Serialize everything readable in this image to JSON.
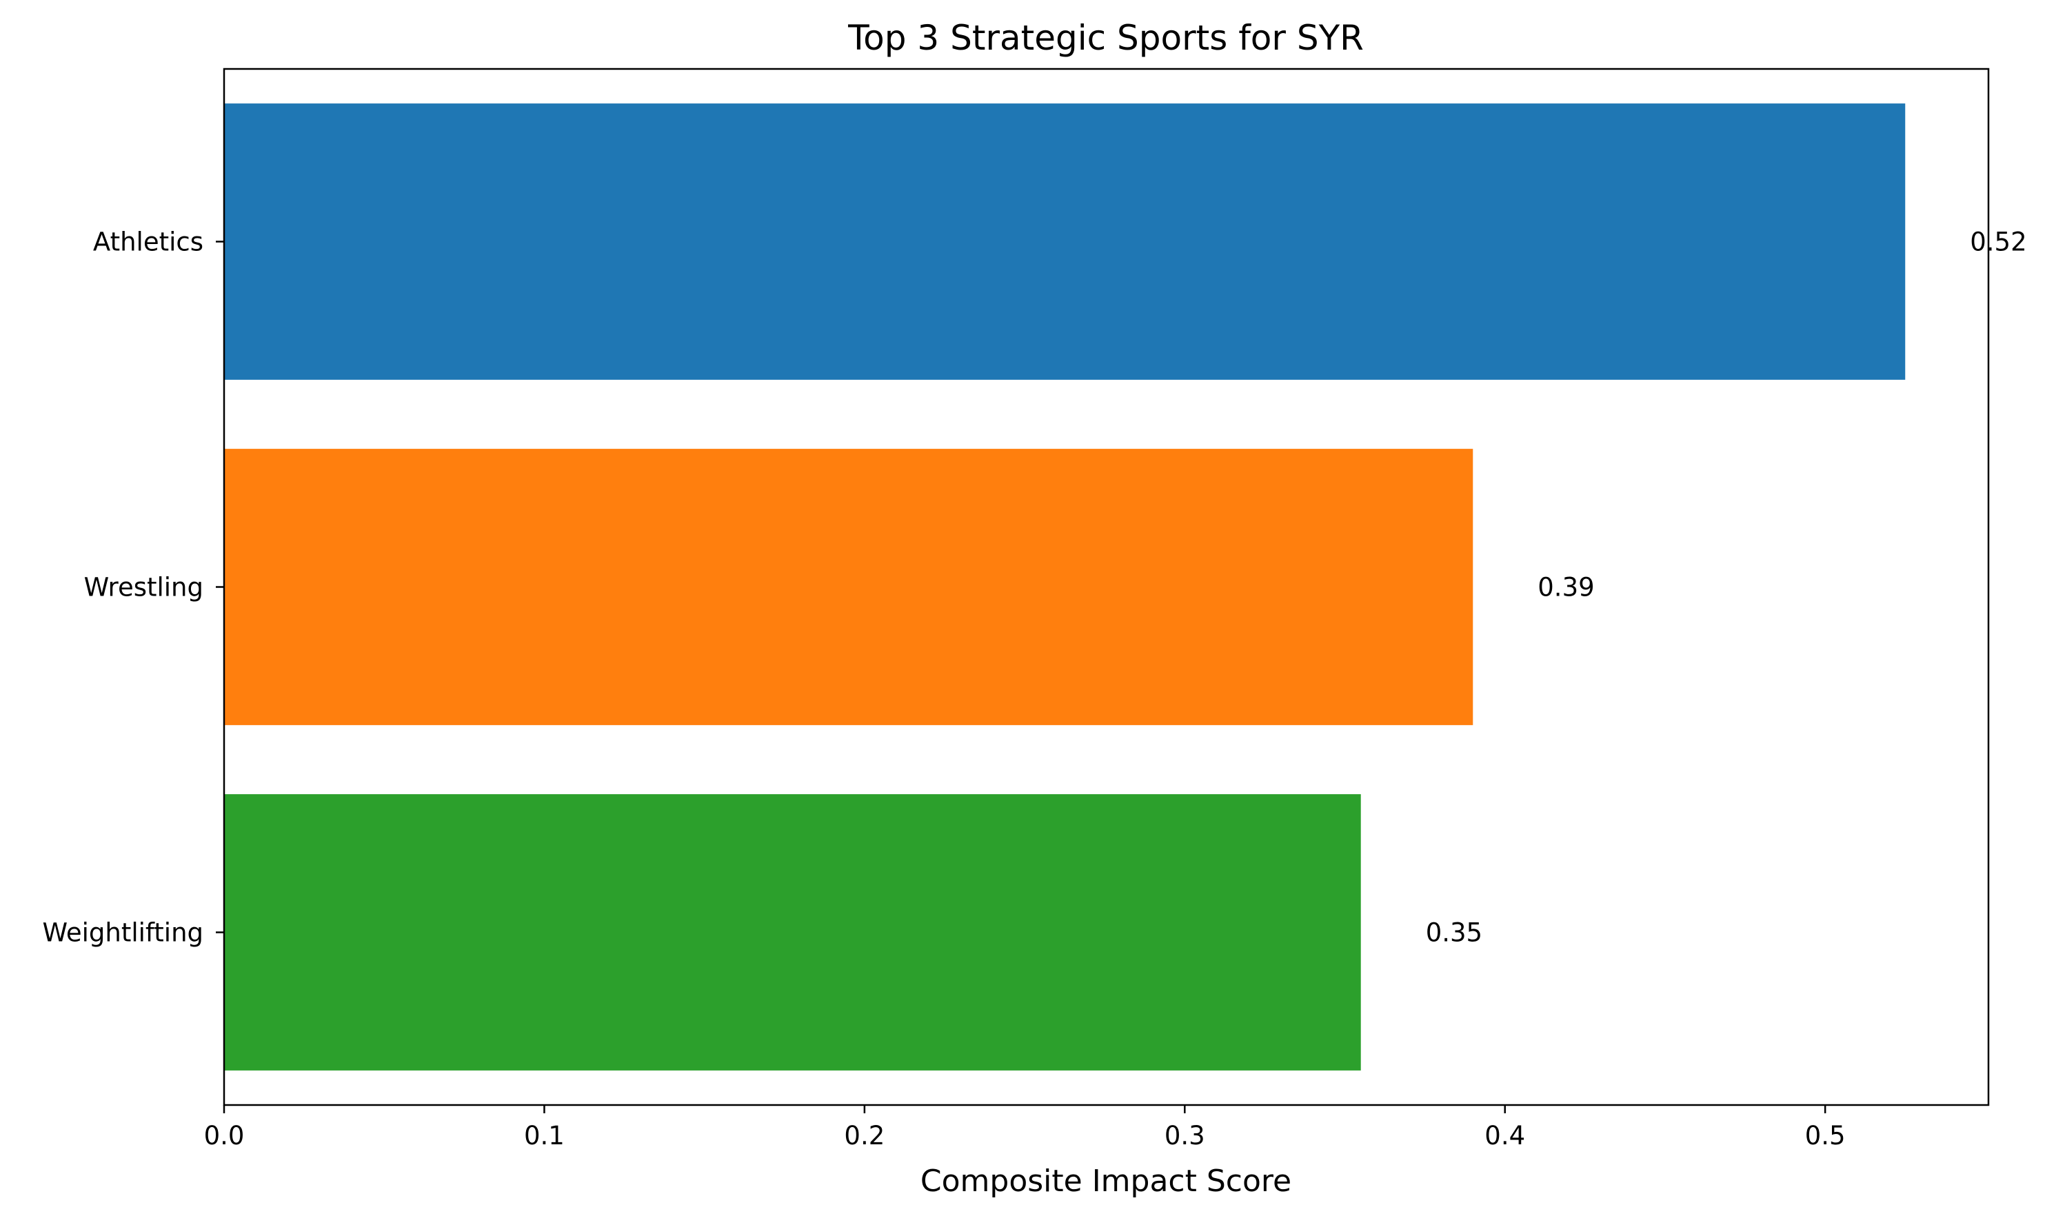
{
  "chart_data": {
    "type": "bar",
    "orientation": "horizontal",
    "title": "Top 3 Strategic Sports for SYR",
    "xlabel": "Composite Impact Score",
    "ylabel": "",
    "categories": [
      "Athletics",
      "Wrestling",
      "Weightlifting"
    ],
    "values": [
      0.525,
      0.39,
      0.355
    ],
    "data_labels": [
      "0.52",
      "0.39",
      "0.35"
    ],
    "colors": [
      "#1f77b4",
      "#ff7f0e",
      "#2ca02c"
    ],
    "xlim": [
      0,
      0.551
    ],
    "xticks": [
      0.0,
      0.1,
      0.2,
      0.3,
      0.4,
      0.5
    ],
    "xtick_labels": [
      "0.0",
      "0.1",
      "0.2",
      "0.3",
      "0.4",
      "0.5"
    ],
    "grid": false,
    "legend": false
  }
}
